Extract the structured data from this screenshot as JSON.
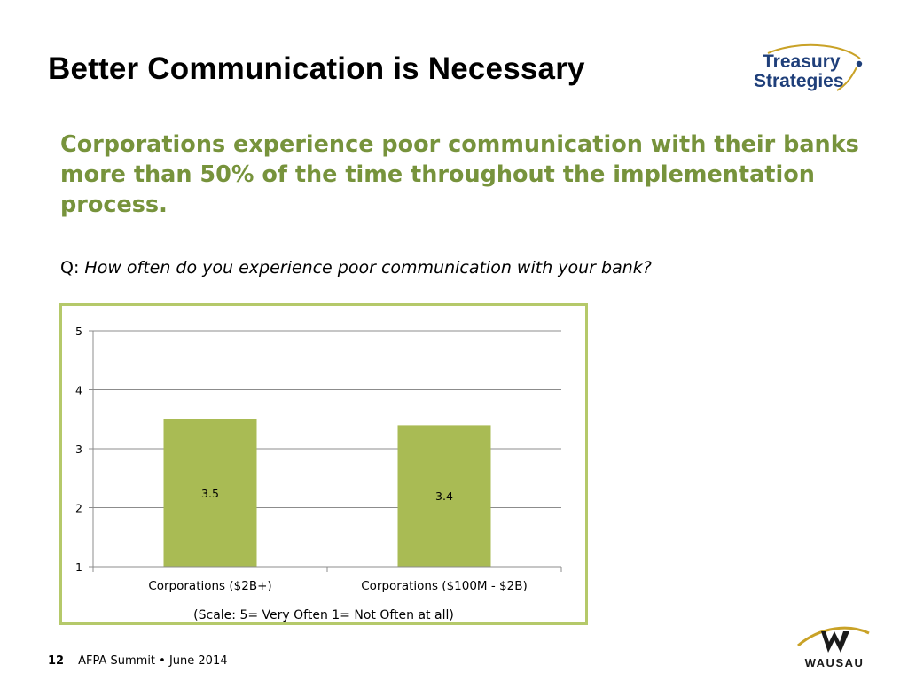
{
  "slide": {
    "title": "Better Communication is Necessary",
    "headline": "Corporations experience poor communication with their banks more than 50% of the time throughout the implementation process.",
    "question_prefix": "Q:",
    "question_text": "How often do you experience poor communication with your bank?",
    "scale_note": "(Scale: 5= Very Often 1= Not Often at all)",
    "page_number": "12",
    "footer_text": "AFPA Summit • June 2014",
    "logo_top_line1": "Treasury",
    "logo_top_line2": "Strategies",
    "logo_bottom": "WAUSAU",
    "colors": {
      "accent_green": "#77933c",
      "bar_green": "#a9bb54",
      "frame_green": "#b5c96a",
      "logo_navy": "#1f3f7a",
      "logo_gold": "#c9a227"
    }
  },
  "chart_data": {
    "type": "bar",
    "categories": [
      "Corporations ($2B+)",
      "Corporations ($100M - $2B)"
    ],
    "values": [
      3.5,
      3.4
    ],
    "data_labels": [
      "3.5",
      "3.4"
    ],
    "ylim": [
      1,
      5
    ],
    "yticks": [
      "1",
      "2",
      "3",
      "4",
      "5"
    ],
    "grid": true,
    "legend": "none",
    "title": "",
    "xlabel": "",
    "ylabel": ""
  }
}
